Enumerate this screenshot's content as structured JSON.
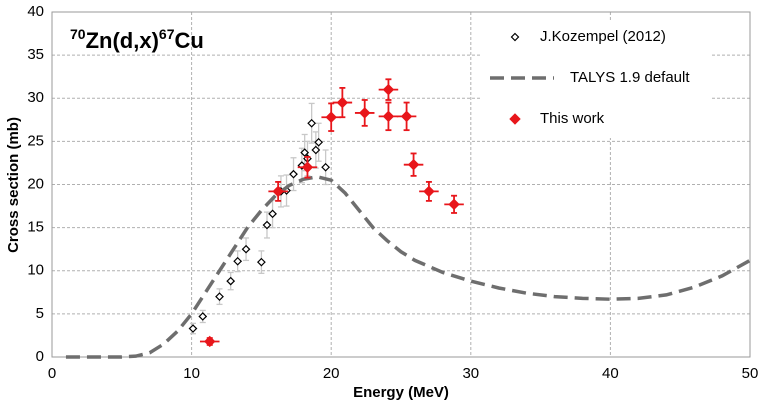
{
  "chart_data": {
    "type": "scatter",
    "title": {
      "target_mass": "70",
      "target": "Zn(d,x)",
      "product_mass": "67",
      "product": "Cu"
    },
    "x_label": "Energy (MeV)",
    "y_label": "Cross section (mb)",
    "xlim": [
      0,
      50
    ],
    "xticks": [
      0,
      10,
      20,
      30,
      40,
      50
    ],
    "ylim": [
      0,
      40
    ],
    "yticks": [
      0,
      5,
      10,
      15,
      20,
      25,
      30,
      35,
      40
    ],
    "grid": true,
    "legend": "top-right",
    "series": [
      {
        "name": "J.Kozempel (2012)",
        "type": "scatter",
        "marker": "open-diamond",
        "color": "#000000",
        "error_color": "#c8c8c8",
        "x": [
          10.1,
          10.8,
          12.0,
          12.8,
          13.3,
          13.9,
          15.0,
          15.4,
          15.8,
          16.4,
          16.8,
          17.3,
          17.9,
          18.1,
          18.3,
          18.6,
          18.9,
          19.1,
          19.6
        ],
        "values": [
          3.3,
          4.7,
          7.0,
          8.8,
          11.1,
          12.5,
          11.0,
          15.3,
          16.6,
          19.2,
          19.3,
          21.2,
          22.2,
          23.7,
          23.0,
          27.1,
          24.0,
          24.9,
          22.0
        ],
        "xerr": [
          0.3,
          0.3,
          0.3,
          0.3,
          0.3,
          0.3,
          0.3,
          0.3,
          0.3,
          0.3,
          0.3,
          0.3,
          0.3,
          0.3,
          0.3,
          0.3,
          0.3,
          0.3,
          0.3
        ],
        "yerr": [
          0.6,
          0.7,
          0.9,
          1.0,
          1.2,
          1.3,
          1.3,
          1.5,
          1.6,
          1.8,
          1.8,
          1.9,
          2.0,
          2.1,
          2.0,
          2.3,
          2.1,
          2.2,
          2.0
        ]
      },
      {
        "name": "TALYS 1.9 default",
        "type": "line",
        "color": "#6e6e6e",
        "x": [
          1,
          5,
          6,
          7,
          8,
          9,
          10,
          11,
          12,
          13,
          14,
          15,
          16,
          17,
          18,
          19,
          20,
          21,
          22,
          23,
          24,
          25,
          26,
          28,
          30,
          32,
          34,
          36,
          38,
          40,
          42,
          44,
          46,
          48,
          50
        ],
        "values": [
          0,
          0,
          0.1,
          0.5,
          1.5,
          3,
          5,
          7.5,
          10,
          12.5,
          15,
          17,
          18.7,
          19.9,
          20.6,
          20.9,
          20.5,
          19,
          17,
          15,
          13.5,
          12.2,
          11.2,
          9.8,
          8.8,
          8,
          7.4,
          7,
          6.8,
          6.7,
          6.8,
          7.2,
          8.1,
          9.4,
          11.2
        ]
      },
      {
        "name": "This work",
        "type": "scatter",
        "marker": "filled-diamond",
        "color": "#e8161b",
        "error_color": "#e8161b",
        "x": [
          11.3,
          16.2,
          18.3,
          20.0,
          20.8,
          22.4,
          24.1,
          24.1,
          25.4,
          25.9,
          27.0,
          28.8
        ],
        "values": [
          1.8,
          19.2,
          22.0,
          27.8,
          29.5,
          28.3,
          31.0,
          27.9,
          27.9,
          22.3,
          19.2,
          17.7
        ],
        "xerr": [
          0.7,
          0.7,
          0.7,
          0.7,
          0.7,
          0.7,
          0.7,
          0.7,
          0.7,
          0.7,
          0.7,
          0.7
        ],
        "yerr": [
          0.4,
          1.1,
          1.2,
          1.6,
          1.7,
          1.5,
          1.2,
          1.6,
          1.6,
          1.3,
          1.1,
          1.0
        ]
      }
    ]
  }
}
